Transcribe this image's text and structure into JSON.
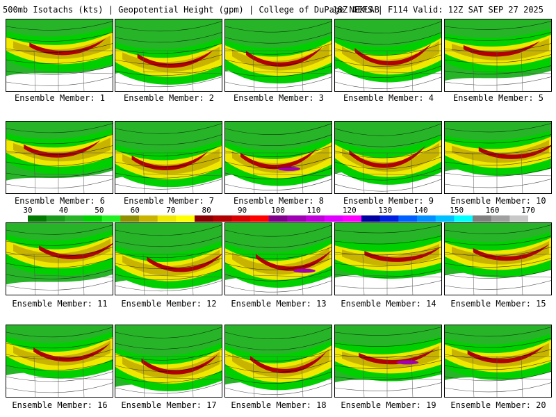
{
  "header": {
    "left": "500mb Isotachs (kts) | Geopotential Height (gpm) | College of DuPage NEXLAB",
    "right": "18Z GEFS | F114 Valid: 12Z SAT SEP 27 2025"
  },
  "panels": [
    {
      "label": "Ensemble Member: 1"
    },
    {
      "label": "Ensemble Member: 2"
    },
    {
      "label": "Ensemble Member: 3"
    },
    {
      "label": "Ensemble Member: 4"
    },
    {
      "label": "Ensemble Member: 5"
    },
    {
      "label": "Ensemble Member: 6"
    },
    {
      "label": "Ensemble Member: 7"
    },
    {
      "label": "Ensemble Member: 8"
    },
    {
      "label": "Ensemble Member: 9"
    },
    {
      "label": "Ensemble Member: 10"
    },
    {
      "label": "Ensemble Member: 11"
    },
    {
      "label": "Ensemble Member: 12"
    },
    {
      "label": "Ensemble Member: 13"
    },
    {
      "label": "Ensemble Member: 14"
    },
    {
      "label": "Ensemble Member: 15"
    },
    {
      "label": "Ensemble Member: 16"
    },
    {
      "label": "Ensemble Member: 17"
    },
    {
      "label": "Ensemble Member: 18"
    },
    {
      "label": "Ensemble Member: 19"
    },
    {
      "label": "Ensemble Member: 20"
    }
  ],
  "colorbar": {
    "labels": [
      "30",
      "40",
      "50",
      "60",
      "70",
      "80",
      "90",
      "100",
      "110",
      "120",
      "130",
      "140",
      "150",
      "160",
      "170"
    ],
    "colors": [
      "#007a00",
      "#1a9a1a",
      "#28b428",
      "#00d000",
      "#22f022",
      "#8f8f00",
      "#c8b400",
      "#f0e800",
      "#ffff00",
      "#8a0000",
      "#b00000",
      "#d80000",
      "#ff0000",
      "#80008c",
      "#a000b4",
      "#c000d8",
      "#e000ff",
      "#ff00ff",
      "#0000a0",
      "#0020e0",
      "#0060ff",
      "#0090ff",
      "#00c0ff",
      "#00ffff",
      "#808080",
      "#a0a0a0",
      "#c8c8c8"
    ]
  }
}
